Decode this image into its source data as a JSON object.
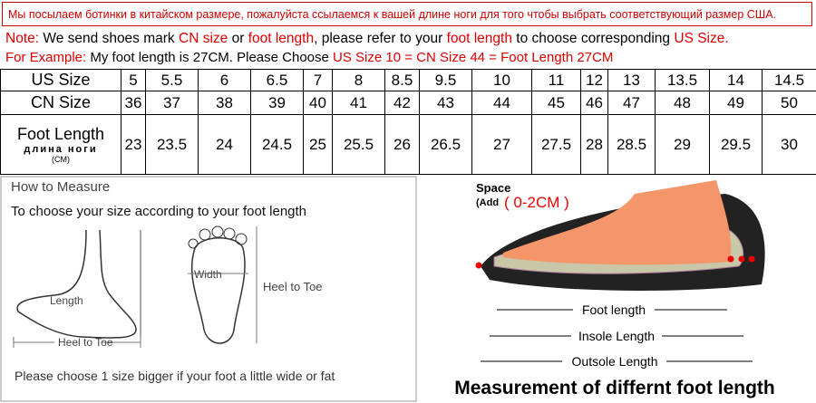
{
  "header": {
    "russian_note": "Мы посылаем ботинки в китайском размере, пожалуйста ссылаемся к вашей длине ноги для того чтобы выбрать соответствующий размер США.",
    "line1": [
      "Note:",
      "We send shoes mark",
      "CN size",
      "or",
      "foot length",
      ", please refer to your",
      "foot length",
      "to choose corresponding",
      "US Size."
    ],
    "line2": [
      "For Example:",
      "My foot length is 27CM. Please Choose",
      "US Size 10 = CN Size 44 = Foot Length 27CM"
    ]
  },
  "table": {
    "rows": [
      {
        "label": "US Size",
        "values": [
          "5",
          "5.5",
          "6",
          "6.5",
          "7",
          "8",
          "8.5",
          "9.5",
          "10",
          "11",
          "12",
          "13",
          "13.5",
          "14",
          "14.5"
        ]
      },
      {
        "label": "CN Size",
        "values": [
          "36",
          "37",
          "38",
          "39",
          "40",
          "41",
          "42",
          "43",
          "44",
          "45",
          "46",
          "47",
          "48",
          "49",
          "50"
        ]
      },
      {
        "label": "Foot Length",
        "sublabel": "длина ноги",
        "unit": "(CM)",
        "values": [
          "23",
          "23.5",
          "24",
          "24.5",
          "25",
          "25.5",
          "26",
          "26.5",
          "27",
          "27.5",
          "28",
          "28.5",
          "29",
          "29.5",
          "30"
        ]
      }
    ]
  },
  "measure": {
    "title": "How to Measure",
    "subtitle": "To choose your size according to your foot length",
    "length_label": "Length",
    "heel_to_toe_side": "Heel to Toe",
    "width_label": "Width",
    "heel_to_toe_top": "Heel to Toe",
    "footnote": "Please choose 1 size bigger if your foot a little wide or fat"
  },
  "shoe": {
    "space_label": "Space",
    "add_label": "(Add",
    "space_value": "( 0-2CM )",
    "foot_length": "Foot length",
    "insole_length": "Insole Length",
    "outsole_length": "Outsole Length",
    "caption": "Measurement of differnt foot length"
  }
}
